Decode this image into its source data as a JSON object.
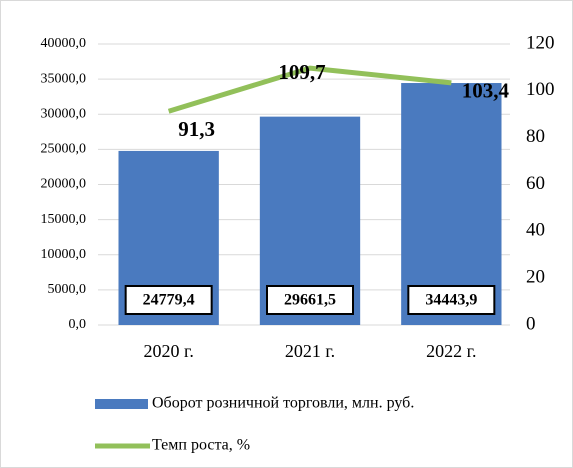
{
  "chart_data": {
    "type": "bar",
    "categories": [
      "2020 г.",
      "2021 г.",
      "2022 г."
    ],
    "series": [
      {
        "name": "Оборот розничной торговли, млн. руб.",
        "type": "bar",
        "color": "#4a7abf",
        "values": [
          24779.4,
          29661.5,
          34443.9
        ],
        "value_labels": [
          "24779,4",
          "29661,5",
          "34443,9"
        ]
      },
      {
        "name": "Темп роста, %",
        "type": "line",
        "axis": "y2",
        "color": "#92c05a",
        "values": [
          91.3,
          109.7,
          103.4
        ],
        "value_labels": [
          "91,3",
          "109,7",
          "103,4"
        ]
      }
    ],
    "ylim": [
      0,
      40000
    ],
    "yticks": [
      {
        "value": 0,
        "label": "0,0"
      },
      {
        "value": 5000,
        "label": "5000,0"
      },
      {
        "value": 10000,
        "label": "10000,0"
      },
      {
        "value": 15000,
        "label": "15000,0"
      },
      {
        "value": 20000,
        "label": "20000,0"
      },
      {
        "value": 25000,
        "label": "25000,0"
      },
      {
        "value": 30000,
        "label": "30000,0"
      },
      {
        "value": 35000,
        "label": "35000,0"
      },
      {
        "value": 40000,
        "label": "40000,0"
      }
    ],
    "y2lim": [
      0,
      120
    ],
    "y2ticks": [
      0,
      20,
      40,
      60,
      80,
      100,
      120
    ],
    "grid": true,
    "legend": "bottom"
  }
}
